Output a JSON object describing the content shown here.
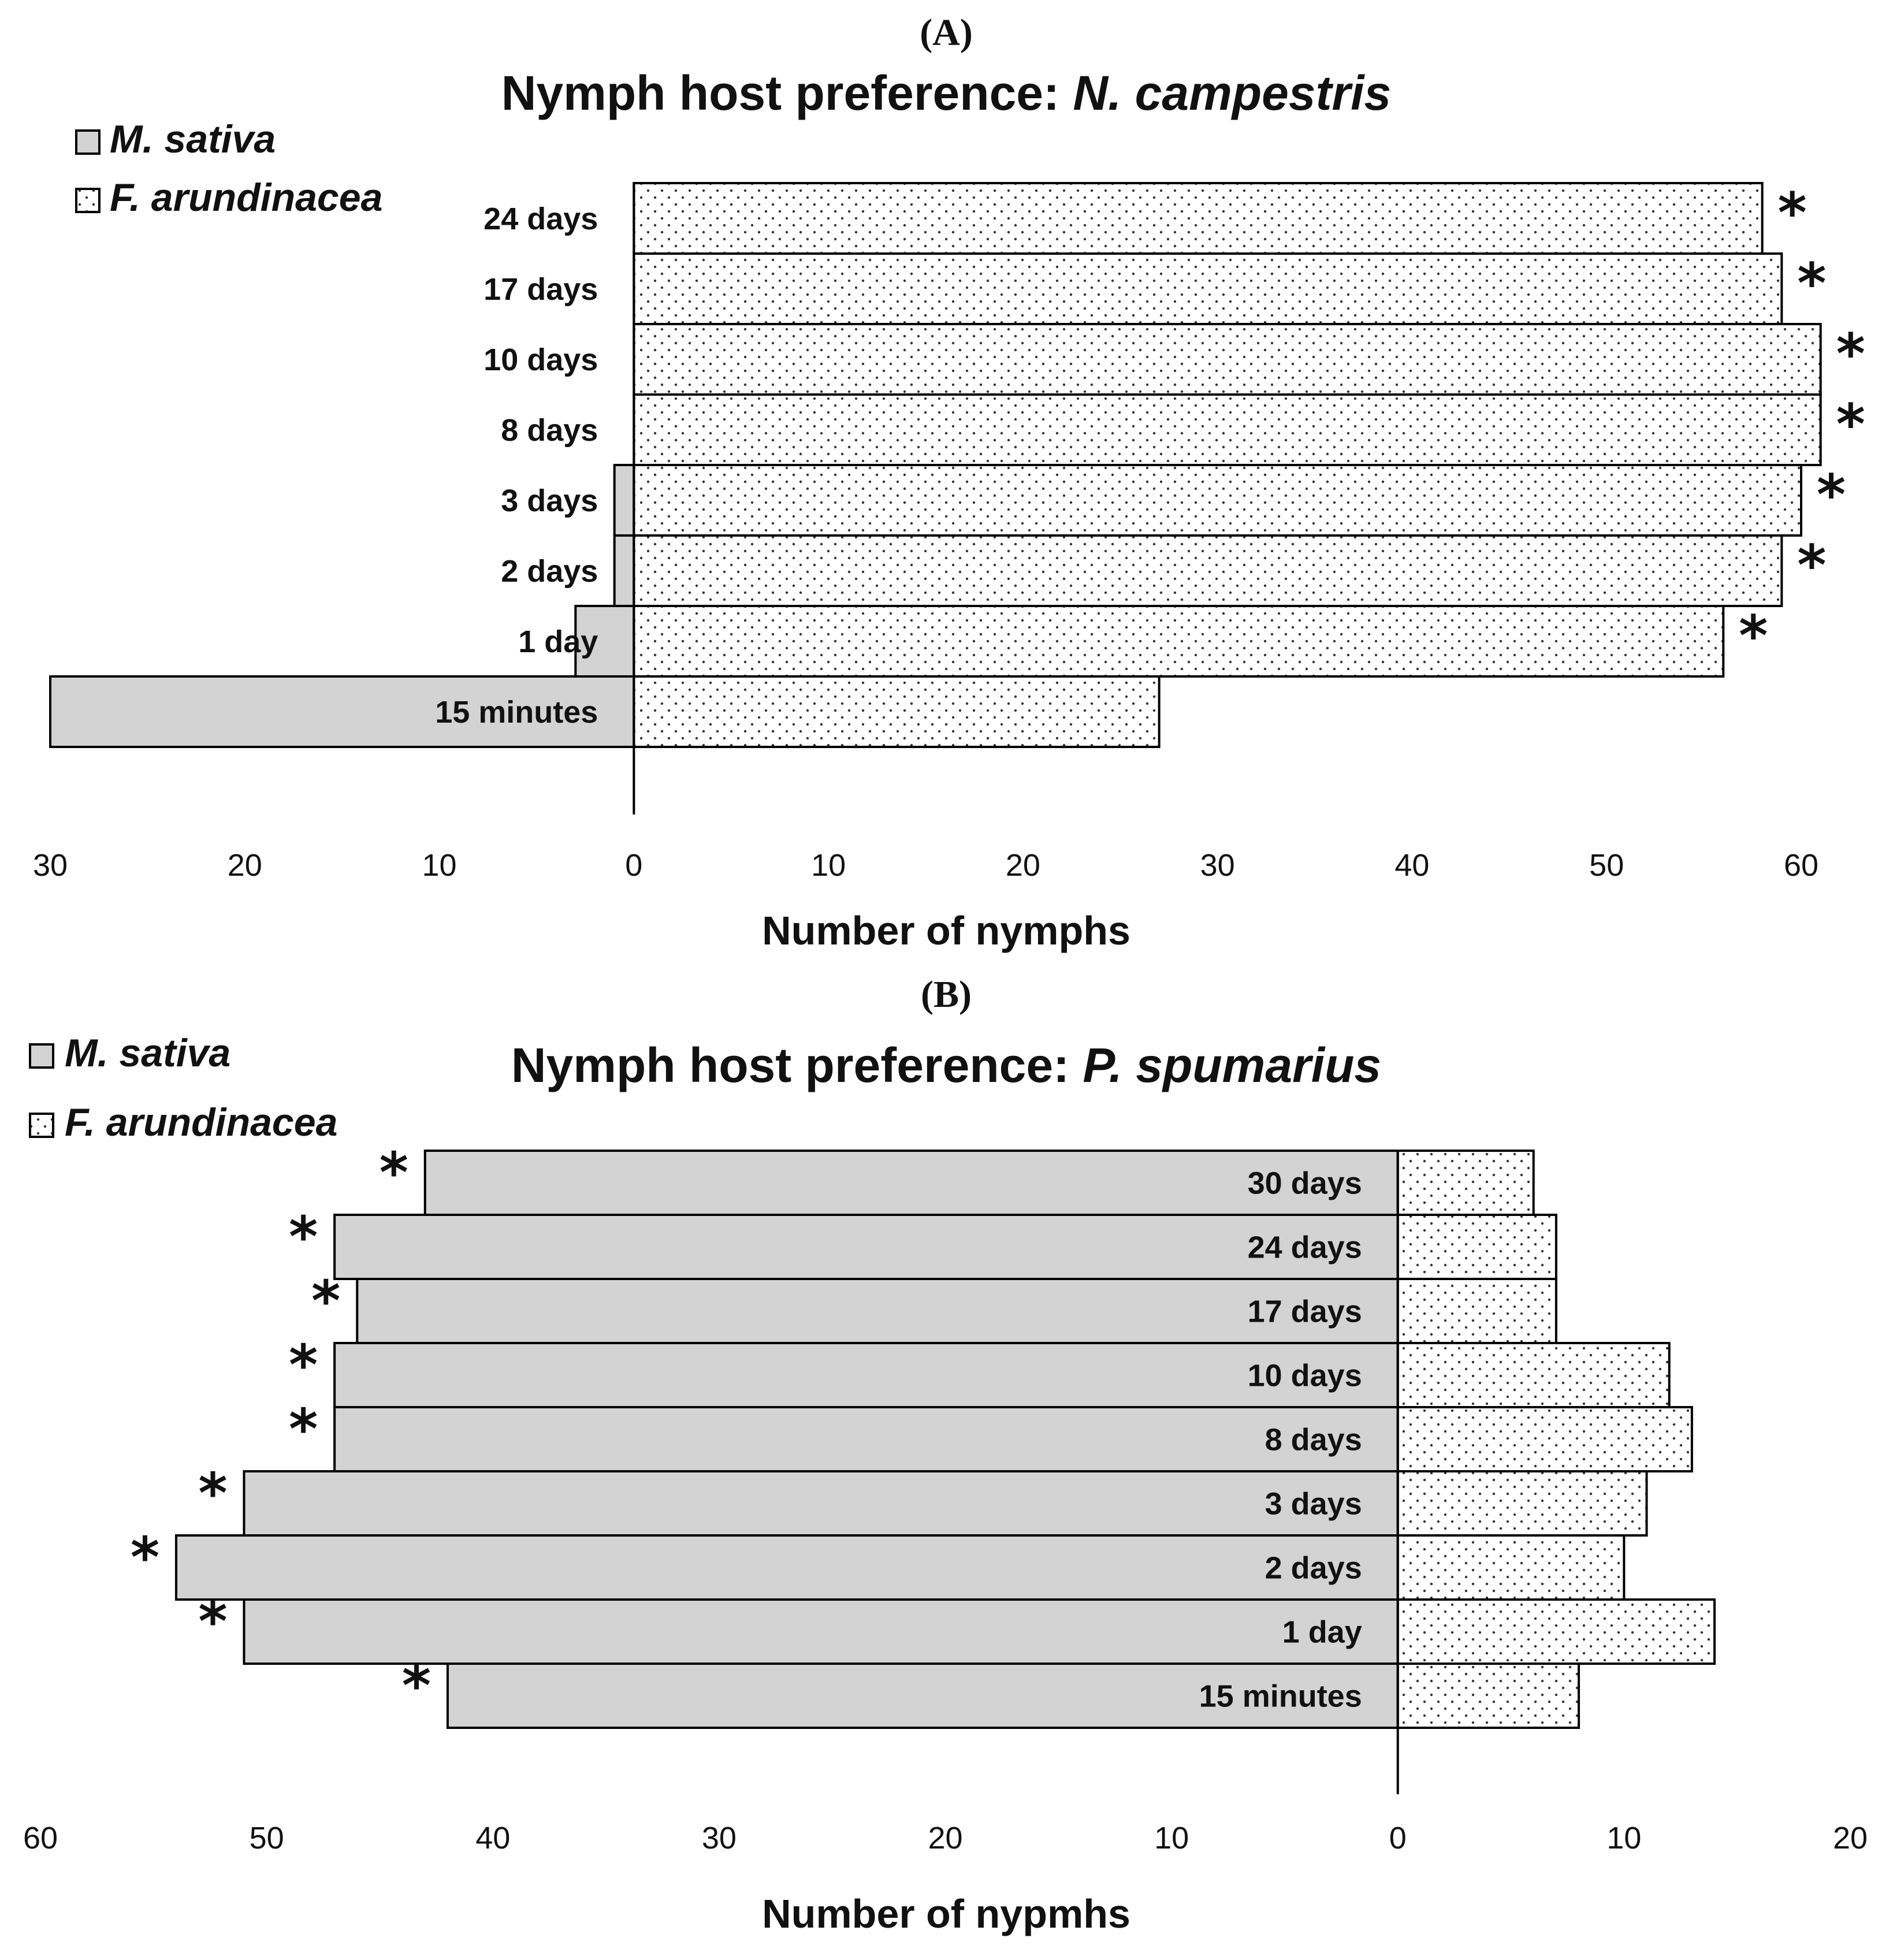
{
  "chart_data": [
    {
      "type": "bar",
      "orientation": "horizontal-diverging",
      "panel_label": "(A)",
      "title_prefix": "Nymph host preference: ",
      "title_species": "N. campestris",
      "xlabel": "Number of nymphs",
      "xlim": [
        -30,
        60
      ],
      "ticks": [
        -30,
        -20,
        -10,
        0,
        10,
        20,
        30,
        40,
        50,
        60
      ],
      "tick_labels": [
        "30",
        "20",
        "10",
        "0",
        "10",
        "20",
        "30",
        "40",
        "50",
        "60"
      ],
      "categories": [
        "24 days",
        "17 days",
        "10 days",
        "8 days",
        "3 days",
        "2 days",
        "1 day",
        "15 minutes"
      ],
      "series": [
        {
          "name": "M. sativa",
          "side": "left",
          "color": "#d3d3d3",
          "values": [
            0,
            0,
            0,
            0,
            1,
            1,
            3,
            30
          ]
        },
        {
          "name": "F. arundinacea",
          "side": "right",
          "color": "#ffffff",
          "pattern": "dots",
          "values": [
            58,
            59,
            61,
            61,
            60,
            59,
            56,
            27
          ]
        }
      ],
      "significance": [
        "*",
        "*",
        "*",
        "*",
        "*",
        "*",
        "*",
        ""
      ],
      "significance_side": "right",
      "legend": [
        "M. sativa",
        "F. arundinacea"
      ],
      "legend_position": "top-left"
    },
    {
      "type": "bar",
      "orientation": "horizontal-diverging",
      "panel_label": "(B)",
      "title_prefix": "Nymph host preference: ",
      "title_species": "P. spumarius",
      "xlabel": "Number of nypmhs",
      "xlim": [
        -60,
        20
      ],
      "ticks": [
        -60,
        -50,
        -40,
        -30,
        -20,
        -10,
        0,
        10,
        20
      ],
      "tick_labels": [
        "60",
        "50",
        "40",
        "30",
        "20",
        "10",
        "0",
        "10",
        "20"
      ],
      "categories": [
        "30 days",
        "24 days",
        "17 days",
        "10 days",
        "8 days",
        "3 days",
        "2 days",
        "1 day",
        "15 minutes"
      ],
      "series": [
        {
          "name": "M. sativa",
          "side": "left",
          "color": "#d3d3d3",
          "values": [
            43,
            47,
            46,
            47,
            47,
            51,
            54,
            51,
            42
          ]
        },
        {
          "name": "F. arundinacea",
          "side": "right",
          "color": "#ffffff",
          "pattern": "dots",
          "values": [
            6,
            7,
            7,
            12,
            13,
            11,
            10,
            14,
            8
          ]
        }
      ],
      "significance": [
        "*",
        "*",
        "*",
        "*",
        "*",
        "*",
        "*",
        "*",
        "*"
      ],
      "significance_side": "left",
      "legend": [
        "M. sativa",
        "F. arundinacea"
      ],
      "legend_position": "top-left"
    }
  ]
}
